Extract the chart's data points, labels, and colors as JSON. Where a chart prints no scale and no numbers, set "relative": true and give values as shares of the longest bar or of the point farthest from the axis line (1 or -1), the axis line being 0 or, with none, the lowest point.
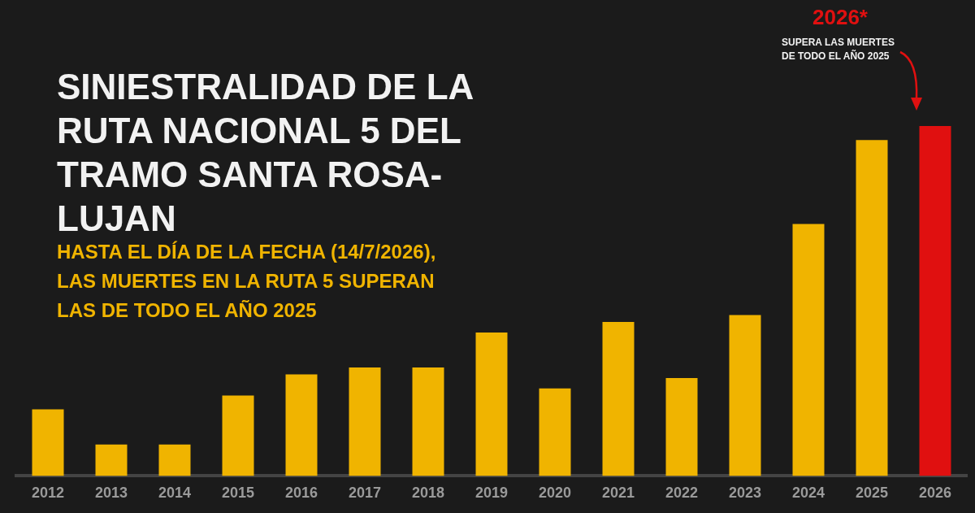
{
  "chart_data": {
    "type": "bar",
    "title": "SINIESTRALIDAD DE LA RUTA NACIONAL 5 DEL TRAMO SANTA ROSA-LUJAN",
    "subtitle": "HASTA EL DÍA DE LA FECHA (14/7/2026), LAS MUERTES EN LA RUTA 5 SUPERAN LAS DE TODO EL AÑO 2025",
    "relative": true,
    "categories": [
      "2012",
      "2013",
      "2014",
      "2015",
      "2016",
      "2017",
      "2018",
      "2019",
      "2020",
      "2021",
      "2022",
      "2023",
      "2024",
      "2025",
      "2026"
    ],
    "values": [
      0.19,
      0.09,
      0.09,
      0.23,
      0.29,
      0.31,
      0.31,
      0.41,
      0.25,
      0.44,
      0.28,
      0.46,
      0.72,
      0.96,
      1
    ],
    "colors": [
      "#f0b400",
      "#f0b400",
      "#f0b400",
      "#f0b400",
      "#f0b400",
      "#f0b400",
      "#f0b400",
      "#f0b400",
      "#f0b400",
      "#f0b400",
      "#f0b400",
      "#f0b400",
      "#f0b400",
      "#f0b400",
      "#e01010"
    ],
    "annotations": [
      "2026*",
      "SUPERA LAS MUERTES DE TODO EL AÑO 2025"
    ],
    "grid": false,
    "legend": false
  }
}
